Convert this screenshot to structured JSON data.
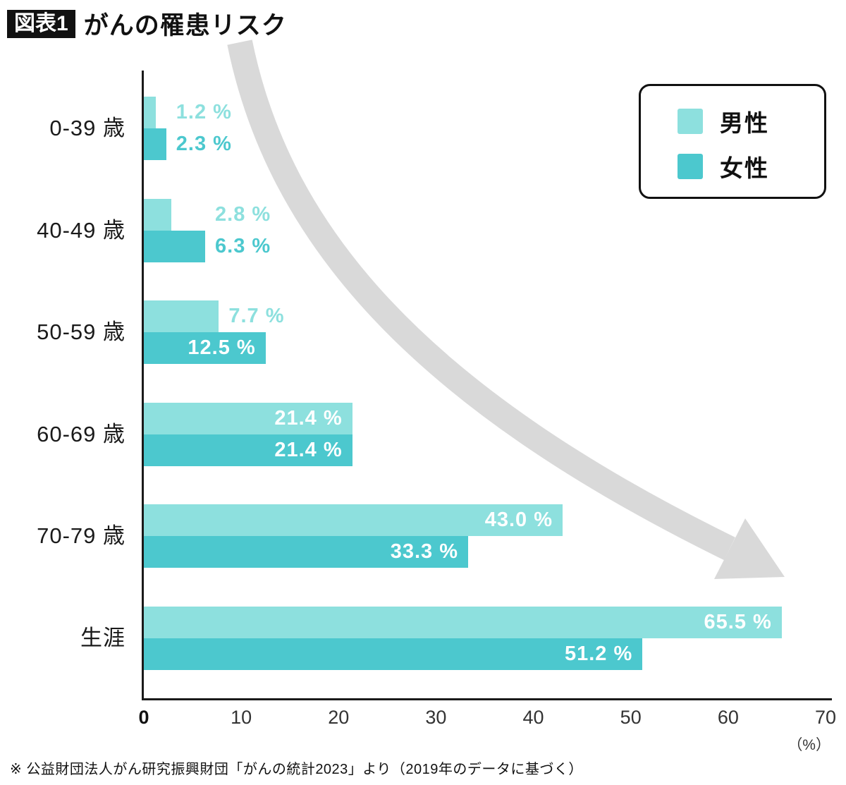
{
  "header": {
    "badge": "図表1",
    "title": "がんの罹患リスク"
  },
  "legend": {
    "items": [
      {
        "label": "男性",
        "color": "#8de0de"
      },
      {
        "label": "女性",
        "color": "#4cc8ce"
      }
    ]
  },
  "chart_data": {
    "type": "bar",
    "orientation": "horizontal",
    "title": "がんの罹患リスク",
    "categories": [
      "0-39 歳",
      "40-49 歳",
      "50-59 歳",
      "60-69 歳",
      "70-79 歳",
      "生涯"
    ],
    "series": [
      {
        "name": "男性",
        "color": "#8de0de",
        "values": [
          1.2,
          2.8,
          7.7,
          21.4,
          43.0,
          65.5
        ],
        "labels": [
          "1.2 %",
          "2.8 %",
          "7.7 %",
          "21.4 %",
          "43.0 %",
          "65.5 %"
        ]
      },
      {
        "name": "女性",
        "color": "#4cc8ce",
        "values": [
          2.3,
          6.3,
          12.5,
          21.4,
          33.3,
          51.2
        ],
        "labels": [
          "2.3 %",
          "6.3 %",
          "12.5 %",
          "21.4 %",
          "33.3 %",
          "51.2 %"
        ]
      }
    ],
    "xlim": [
      0,
      70
    ],
    "x_ticks": [
      0,
      10,
      20,
      30,
      40,
      50,
      60,
      70
    ],
    "x_unit": "（%）",
    "grid": false,
    "legend_position": "top-right",
    "inside_label_threshold": 10,
    "trend_arrow_color": "#d9d9d9"
  },
  "footnote": "※ 公益財団法人がん研究振興財団「がんの統計2023」より（2019年のデータに基づく）"
}
